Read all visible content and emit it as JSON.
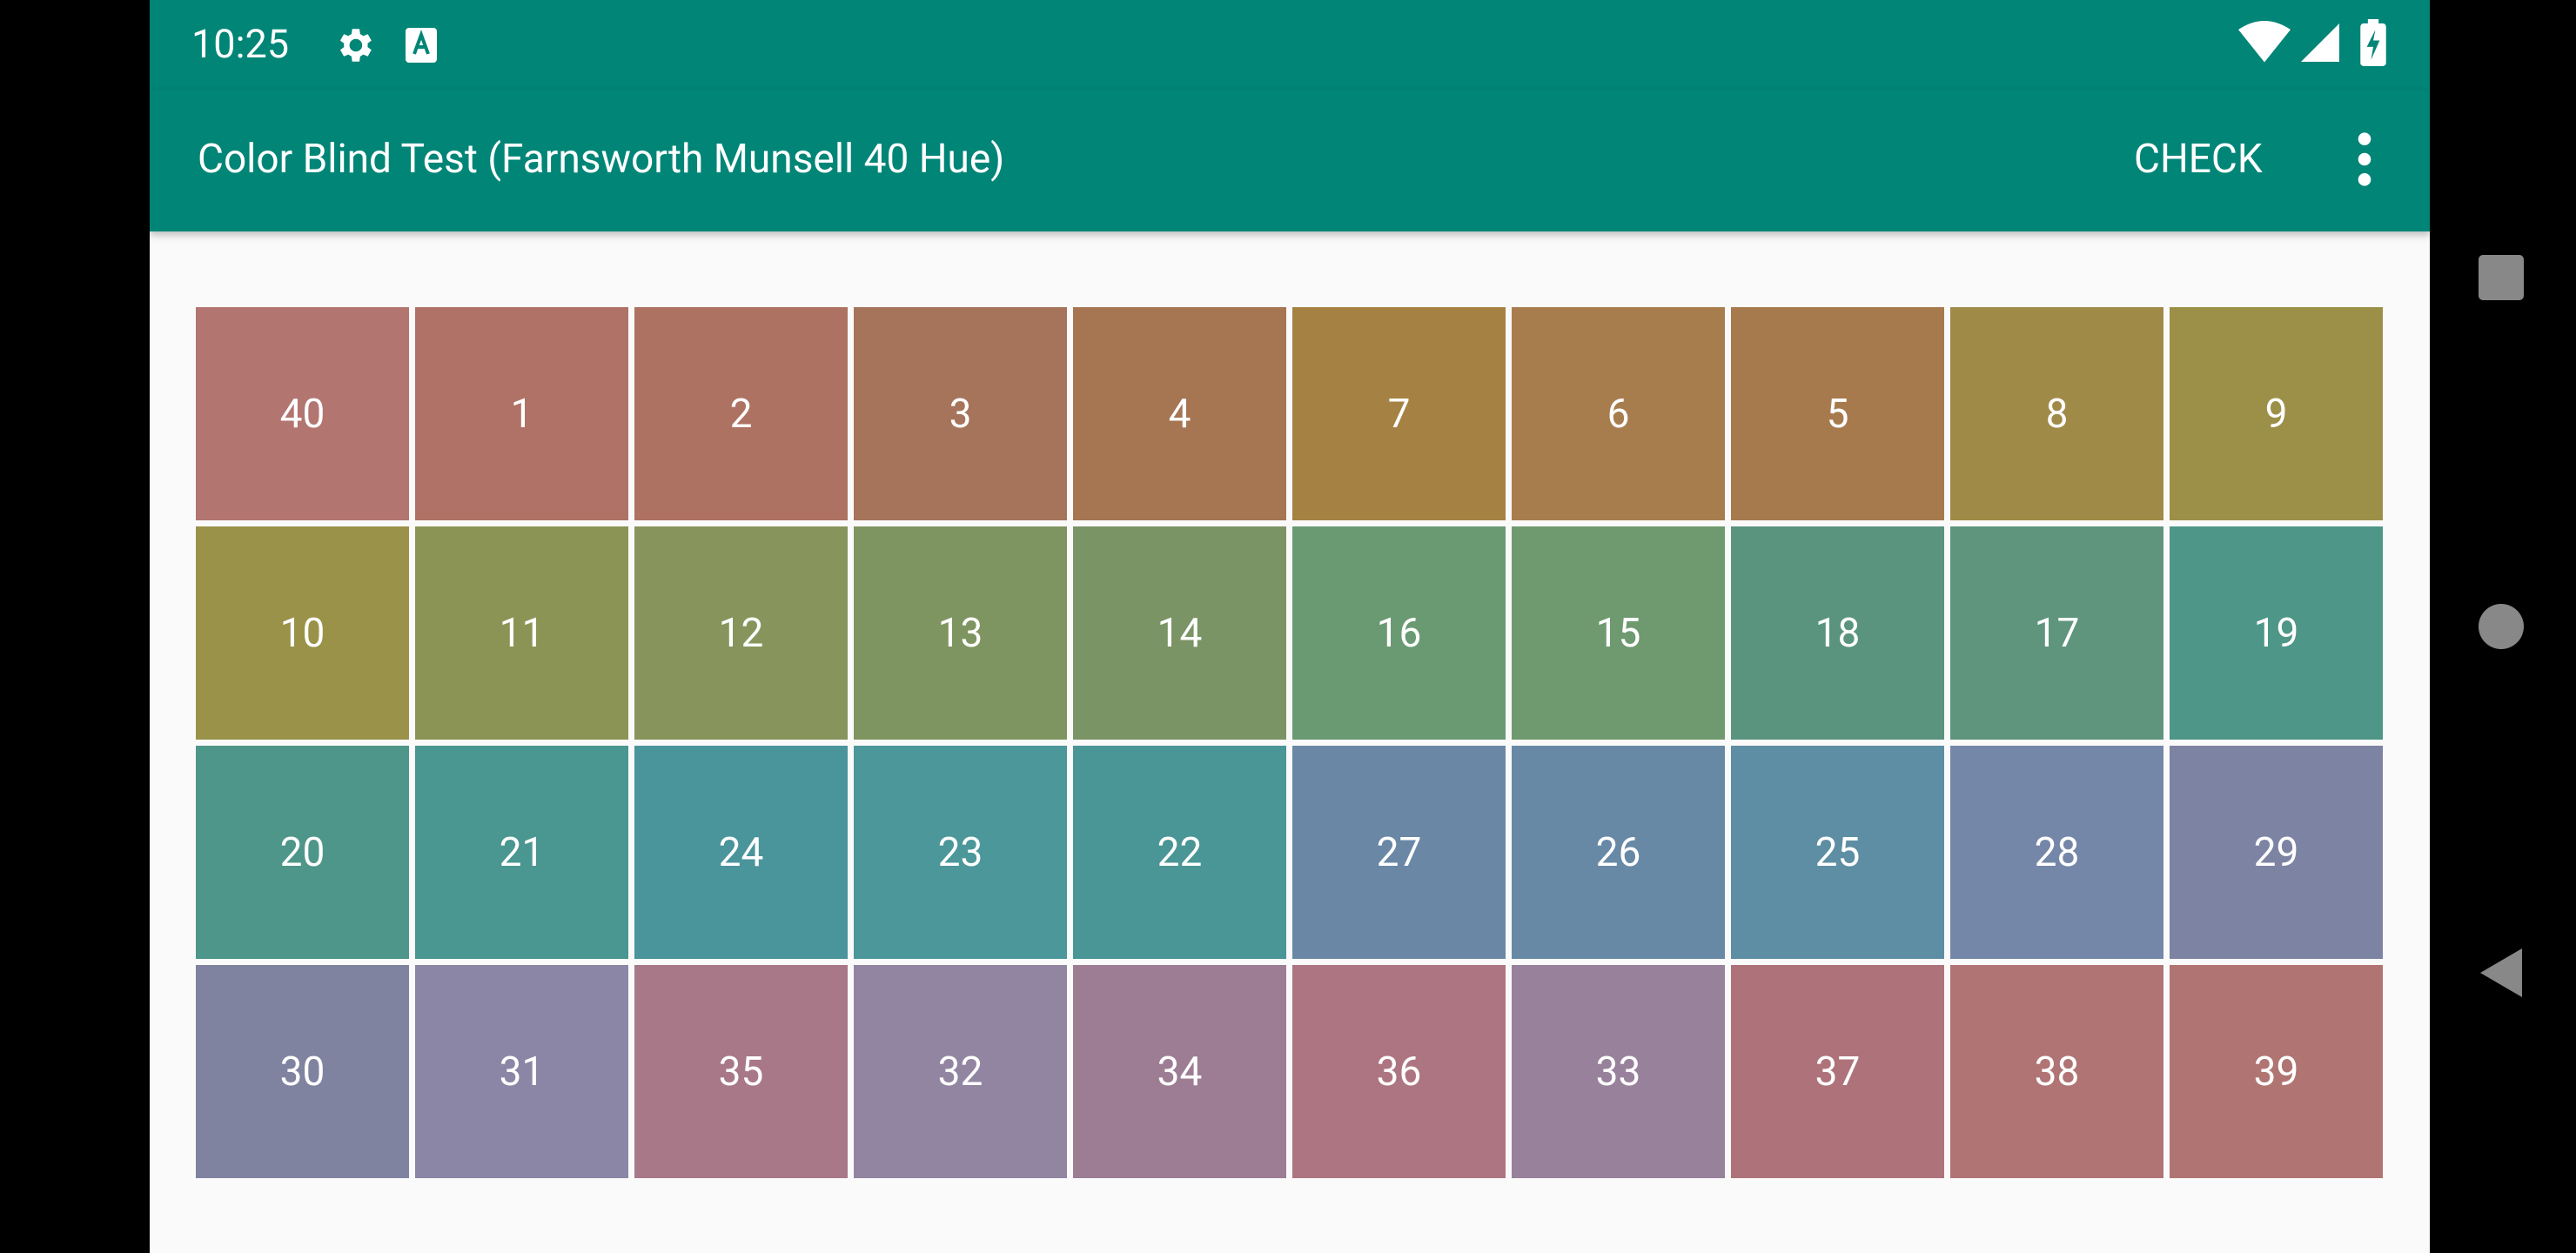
{
  "status_bar": {
    "time": "10:25"
  },
  "toolbar": {
    "title": "Color Blind Test (Farnsworth Munsell 40 Hue)",
    "action": "CHECK"
  },
  "tiles": [
    {
      "label": 40,
      "color": "#b27570"
    },
    {
      "label": 1,
      "color": "#b07266"
    },
    {
      "label": 2,
      "color": "#ad7261"
    },
    {
      "label": 3,
      "color": "#a6745b"
    },
    {
      "label": 4,
      "color": "#a67552"
    },
    {
      "label": 7,
      "color": "#a58143"
    },
    {
      "label": 6,
      "color": "#a87d4e"
    },
    {
      "label": 5,
      "color": "#a77a4e"
    },
    {
      "label": 8,
      "color": "#a08a47"
    },
    {
      "label": 9,
      "color": "#9c8f48"
    },
    {
      "label": 10,
      "color": "#9a9249"
    },
    {
      "label": 11,
      "color": "#8c9455"
    },
    {
      "label": 12,
      "color": "#87955c"
    },
    {
      "label": 13,
      "color": "#7f9561"
    },
    {
      "label": 14,
      "color": "#7b9466"
    },
    {
      "label": 16,
      "color": "#6a9a72"
    },
    {
      "label": 15,
      "color": "#6f9a6f"
    },
    {
      "label": 18,
      "color": "#5a947e"
    },
    {
      "label": 17,
      "color": "#5e957c"
    },
    {
      "label": 19,
      "color": "#4e9687"
    },
    {
      "label": 20,
      "color": "#4e968a"
    },
    {
      "label": 21,
      "color": "#4a9690"
    },
    {
      "label": 24,
      "color": "#4a949c"
    },
    {
      "label": 23,
      "color": "#4b979a"
    },
    {
      "label": 22,
      "color": "#4a9595"
    },
    {
      "label": 27,
      "color": "#6a88a6"
    },
    {
      "label": 26,
      "color": "#6889a6"
    },
    {
      "label": 25,
      "color": "#5e8ea3"
    },
    {
      "label": 28,
      "color": "#7587a8"
    },
    {
      "label": 29,
      "color": "#7d84a3"
    },
    {
      "label": 30,
      "color": "#8083a0"
    },
    {
      "label": 31,
      "color": "#8b86a5"
    },
    {
      "label": 35,
      "color": "#a87889"
    },
    {
      "label": 32,
      "color": "#9185a1"
    },
    {
      "label": 34,
      "color": "#9d7d94"
    },
    {
      "label": 36,
      "color": "#ad7581"
    },
    {
      "label": 33,
      "color": "#98819b"
    },
    {
      "label": 37,
      "color": "#ae737a"
    },
    {
      "label": 38,
      "color": "#b07475"
    },
    {
      "label": 39,
      "color": "#b07572"
    }
  ]
}
